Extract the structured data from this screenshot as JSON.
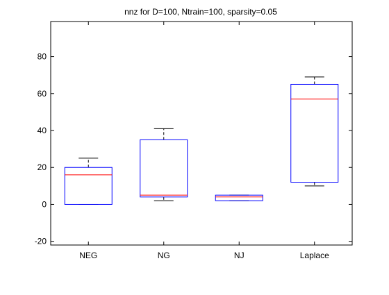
{
  "chart_data": {
    "type": "box",
    "title": "nnz  for D=100, Ntrain=100, sparsity=0.05",
    "xlabel": "",
    "ylabel": "",
    "ylim": [
      -22,
      99
    ],
    "yticks": [
      -20,
      0,
      20,
      40,
      60,
      80
    ],
    "ytick_labels": [
      "-20",
      "0",
      "20",
      "40",
      "60",
      "80"
    ],
    "grid": false,
    "categories": [
      "NEG",
      "NG",
      "NJ",
      "Laplace"
    ],
    "boxes": [
      {
        "label": "NEG",
        "whisker_low": 0,
        "q1": 0,
        "median": 16,
        "q3": 20,
        "whisker_high": 25
      },
      {
        "label": "NG",
        "whisker_low": 2,
        "q1": 4,
        "median": 5,
        "q3": 35,
        "whisker_high": 41
      },
      {
        "label": "NJ",
        "whisker_low": 2,
        "q1": 2,
        "median": 4,
        "q3": 5,
        "whisker_high": 5
      },
      {
        "label": "Laplace",
        "whisker_low": 10,
        "q1": 12,
        "median": 57,
        "q3": 65,
        "whisker_high": 69
      }
    ],
    "colors": {
      "box": "#0000ff",
      "median": "#ff0000",
      "whisker": "#000000",
      "axes": "#000000"
    }
  }
}
